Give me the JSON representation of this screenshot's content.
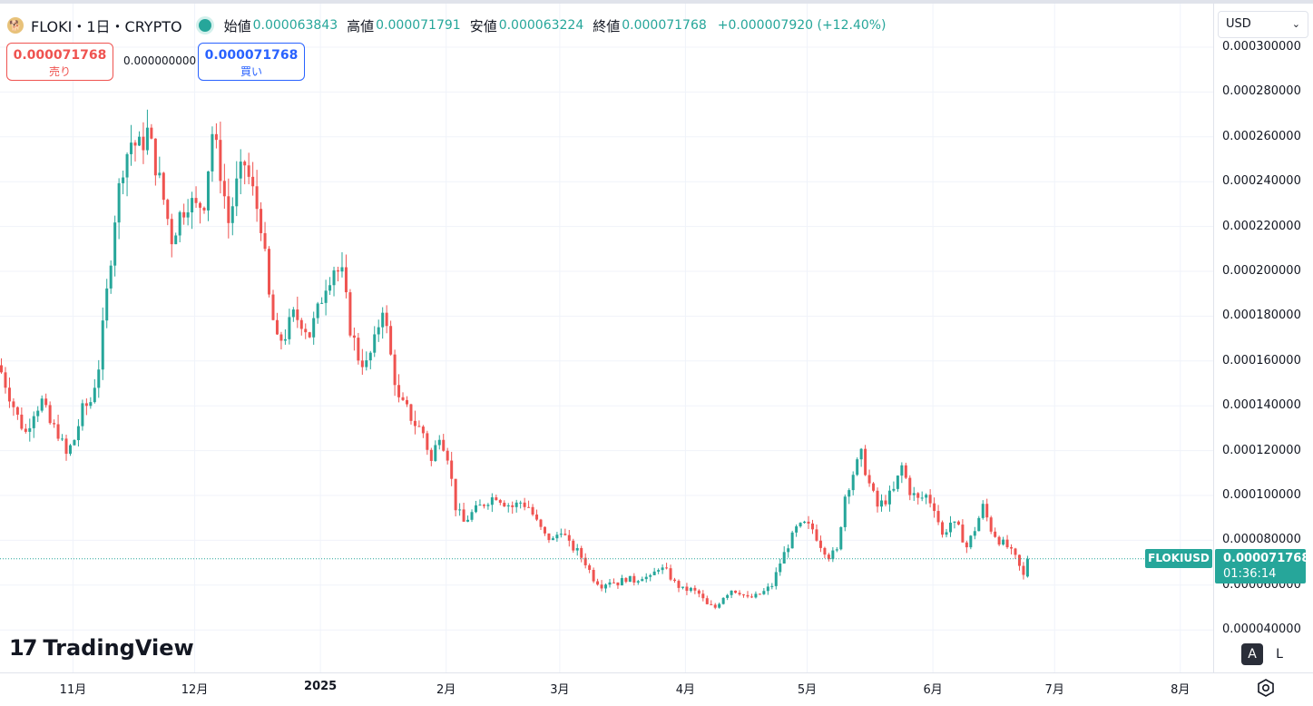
{
  "legend": {
    "symbol": "FLOKI・1日・CRYPTO",
    "open_label": "始値",
    "open": "0.000063843",
    "high_label": "高値",
    "high": "0.000071791",
    "low_label": "安値",
    "low": "0.000063224",
    "close_label": "終値",
    "close": "0.000071768",
    "change": "+0.000007920 (+12.40%)"
  },
  "trade": {
    "sell_price": "0.000071768",
    "sell_label": "売り",
    "buy_price": "0.000071768",
    "buy_label": "買い",
    "spread": "0.000000000"
  },
  "currency": "USD",
  "price_axis": [
    "0.000300000",
    "0.000280000",
    "0.000260000",
    "0.000240000",
    "0.000220000",
    "0.000200000",
    "0.000180000",
    "0.000160000",
    "0.000140000",
    "0.000120000",
    "0.000100000",
    "0.000080000",
    "0.000060000",
    "0.000040000"
  ],
  "time_axis": [
    "11月",
    "12月",
    "2025",
    "2月",
    "3月",
    "4月",
    "5月",
    "6月",
    "7月",
    "8月"
  ],
  "last_price": {
    "pair": "FLOKIUSD",
    "price": "0.000071768",
    "countdown": "01:36:14"
  },
  "brand": "TradingView",
  "scale_buttons": {
    "auto": "A",
    "log": "L"
  },
  "colors": {
    "up": "#26a69a",
    "down": "#ef5350",
    "grid": "#f0f3fa"
  },
  "chart_data": {
    "type": "candlestick",
    "ylim": [
      3e-05,
      0.0003
    ],
    "grid": true,
    "closes": [
      {
        "date": "2024-10-14",
        "close": 0.000155
      },
      {
        "date": "2024-10-16",
        "close": 0.000145
      },
      {
        "date": "2024-10-18",
        "close": 0.000135
      },
      {
        "date": "2024-10-20",
        "close": 0.000128
      },
      {
        "date": "2024-10-22",
        "close": 0.000138
      },
      {
        "date": "2024-10-24",
        "close": 0.000142
      },
      {
        "date": "2024-10-26",
        "close": 0.000132
      },
      {
        "date": "2024-10-28",
        "close": 0.000128
      },
      {
        "date": "2024-10-30",
        "close": 0.000118
      },
      {
        "date": "2024-11-01",
        "close": 0.000125
      },
      {
        "date": "2024-11-03",
        "close": 0.000138
      },
      {
        "date": "2024-11-05",
        "close": 0.000142
      },
      {
        "date": "2024-11-07",
        "close": 0.000158
      },
      {
        "date": "2024-11-09",
        "close": 0.00019
      },
      {
        "date": "2024-11-11",
        "close": 0.000225
      },
      {
        "date": "2024-11-13",
        "close": 0.000248
      },
      {
        "date": "2024-11-15",
        "close": 0.000258
      },
      {
        "date": "2024-11-17",
        "close": 0.000255
      },
      {
        "date": "2024-11-19",
        "close": 0.000262
      },
      {
        "date": "2024-11-21",
        "close": 0.000248
      },
      {
        "date": "2024-11-23",
        "close": 0.000232
      },
      {
        "date": "2024-11-25",
        "close": 0.000215
      },
      {
        "date": "2024-11-27",
        "close": 0.000225
      },
      {
        "date": "2024-11-29",
        "close": 0.000232
      },
      {
        "date": "2024-12-01",
        "close": 0.000228
      },
      {
        "date": "2024-12-03",
        "close": 0.000232
      },
      {
        "date": "2024-12-05",
        "close": 0.000262
      },
      {
        "date": "2024-12-07",
        "close": 0.000245
      },
      {
        "date": "2024-12-09",
        "close": 0.000222
      },
      {
        "date": "2024-12-11",
        "close": 0.000238
      },
      {
        "date": "2024-12-13",
        "close": 0.000248
      },
      {
        "date": "2024-12-15",
        "close": 0.000235
      },
      {
        "date": "2024-12-17",
        "close": 0.000222
      },
      {
        "date": "2024-12-19",
        "close": 0.000188
      },
      {
        "date": "2024-12-21",
        "close": 0.000168
      },
      {
        "date": "2024-12-23",
        "close": 0.000172
      },
      {
        "date": "2024-12-25",
        "close": 0.00018
      },
      {
        "date": "2024-12-27",
        "close": 0.000178
      },
      {
        "date": "2024-12-29",
        "close": 0.000172
      },
      {
        "date": "2024-12-31",
        "close": 0.000182
      },
      {
        "date": "2025-01-02",
        "close": 0.000195
      },
      {
        "date": "2025-01-04",
        "close": 0.000202
      },
      {
        "date": "2025-01-06",
        "close": 0.000198
      },
      {
        "date": "2025-01-08",
        "close": 0.000175
      },
      {
        "date": "2025-01-10",
        "close": 0.000162
      },
      {
        "date": "2025-01-12",
        "close": 0.000158
      },
      {
        "date": "2025-01-14",
        "close": 0.000168
      },
      {
        "date": "2025-01-16",
        "close": 0.000185
      },
      {
        "date": "2025-01-18",
        "close": 0.000162
      },
      {
        "date": "2025-01-20",
        "close": 0.000142
      },
      {
        "date": "2025-01-22",
        "close": 0.000138
      },
      {
        "date": "2025-01-24",
        "close": 0.000132
      },
      {
        "date": "2025-01-26",
        "close": 0.000128
      },
      {
        "date": "2025-01-28",
        "close": 0.000115
      },
      {
        "date": "2025-01-30",
        "close": 0.000128
      },
      {
        "date": "2025-02-01",
        "close": 0.000118
      },
      {
        "date": "2025-02-03",
        "close": 9.5e-05
      },
      {
        "date": "2025-02-05",
        "close": 8.8e-05
      },
      {
        "date": "2025-02-07",
        "close": 9.2e-05
      },
      {
        "date": "2025-02-09",
        "close": 9.5e-05
      },
      {
        "date": "2025-02-11",
        "close": 9.8e-05
      },
      {
        "date": "2025-02-13",
        "close": 0.0001
      },
      {
        "date": "2025-02-15",
        "close": 9.7e-05
      },
      {
        "date": "2025-02-17",
        "close": 9.5e-05
      },
      {
        "date": "2025-02-19",
        "close": 9.7e-05
      },
      {
        "date": "2025-02-21",
        "close": 9.5e-05
      },
      {
        "date": "2025-02-23",
        "close": 8.8e-05
      },
      {
        "date": "2025-02-25",
        "close": 8.2e-05
      },
      {
        "date": "2025-02-27",
        "close": 8e-05
      },
      {
        "date": "2025-03-01",
        "close": 8.5e-05
      },
      {
        "date": "2025-03-03",
        "close": 7.8e-05
      },
      {
        "date": "2025-03-05",
        "close": 7.5e-05
      },
      {
        "date": "2025-03-07",
        "close": 7e-05
      },
      {
        "date": "2025-03-09",
        "close": 6.3e-05
      },
      {
        "date": "2025-03-11",
        "close": 6e-05
      },
      {
        "date": "2025-03-13",
        "close": 6.2e-05
      },
      {
        "date": "2025-03-15",
        "close": 6.1e-05
      },
      {
        "date": "2025-03-17",
        "close": 6.3e-05
      },
      {
        "date": "2025-03-19",
        "close": 6.2e-05
      },
      {
        "date": "2025-03-21",
        "close": 6.4e-05
      },
      {
        "date": "2025-03-23",
        "close": 6.3e-05
      },
      {
        "date": "2025-03-25",
        "close": 6.8e-05
      },
      {
        "date": "2025-03-27",
        "close": 6.6e-05
      },
      {
        "date": "2025-03-29",
        "close": 6.1e-05
      },
      {
        "date": "2025-03-31",
        "close": 5.8e-05
      },
      {
        "date": "2025-04-02",
        "close": 5.8e-05
      },
      {
        "date": "2025-04-04",
        "close": 5.6e-05
      },
      {
        "date": "2025-04-06",
        "close": 5.1e-05
      },
      {
        "date": "2025-04-08",
        "close": 5e-05
      },
      {
        "date": "2025-04-10",
        "close": 5.5e-05
      },
      {
        "date": "2025-04-12",
        "close": 5.8e-05
      },
      {
        "date": "2025-04-14",
        "close": 5.7e-05
      },
      {
        "date": "2025-04-16",
        "close": 5.4e-05
      },
      {
        "date": "2025-04-18",
        "close": 5.5e-05
      },
      {
        "date": "2025-04-20",
        "close": 5.7e-05
      },
      {
        "date": "2025-04-22",
        "close": 6e-05
      },
      {
        "date": "2025-04-24",
        "close": 7e-05
      },
      {
        "date": "2025-04-26",
        "close": 7.8e-05
      },
      {
        "date": "2025-04-28",
        "close": 8.5e-05
      },
      {
        "date": "2025-04-30",
        "close": 8.7e-05
      },
      {
        "date": "2025-05-02",
        "close": 8.5e-05
      },
      {
        "date": "2025-05-04",
        "close": 7.8e-05
      },
      {
        "date": "2025-05-06",
        "close": 7.3e-05
      },
      {
        "date": "2025-05-08",
        "close": 7.5e-05
      },
      {
        "date": "2025-05-10",
        "close": 0.0001
      },
      {
        "date": "2025-05-12",
        "close": 0.00011
      },
      {
        "date": "2025-05-14",
        "close": 0.000118
      },
      {
        "date": "2025-05-16",
        "close": 0.000105
      },
      {
        "date": "2025-05-18",
        "close": 9.5e-05
      },
      {
        "date": "2025-05-20",
        "close": 9.8e-05
      },
      {
        "date": "2025-05-22",
        "close": 0.000102
      },
      {
        "date": "2025-05-24",
        "close": 0.000113
      },
      {
        "date": "2025-05-26",
        "close": 0.000102
      },
      {
        "date": "2025-05-28",
        "close": 9.8e-05
      },
      {
        "date": "2025-05-30",
        "close": 0.0001
      },
      {
        "date": "2025-06-01",
        "close": 9.5e-05
      },
      {
        "date": "2025-06-03",
        "close": 8.2e-05
      },
      {
        "date": "2025-06-05",
        "close": 8.8e-05
      },
      {
        "date": "2025-06-07",
        "close": 8.5e-05
      },
      {
        "date": "2025-06-09",
        "close": 7.7e-05
      },
      {
        "date": "2025-06-11",
        "close": 8.5e-05
      },
      {
        "date": "2025-06-13",
        "close": 9.5e-05
      },
      {
        "date": "2025-06-15",
        "close": 8.5e-05
      },
      {
        "date": "2025-06-17",
        "close": 8e-05
      },
      {
        "date": "2025-06-19",
        "close": 7.7e-05
      },
      {
        "date": "2025-06-21",
        "close": 7.2e-05
      },
      {
        "date": "2025-06-23",
        "close": 6.4e-05
      },
      {
        "date": "2025-06-24",
        "close": 7.18e-05
      }
    ]
  }
}
